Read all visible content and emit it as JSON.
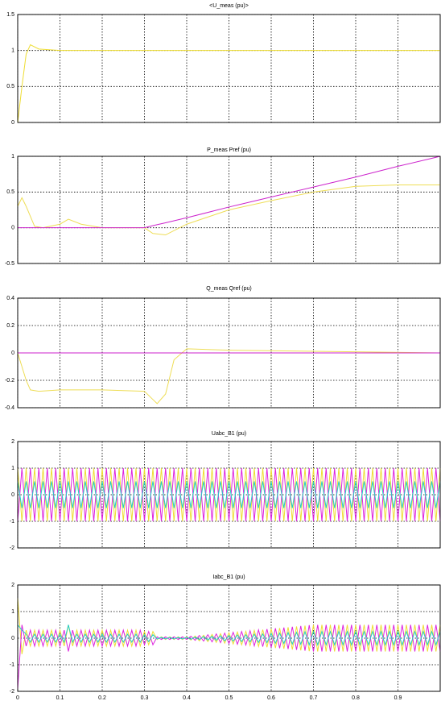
{
  "chart_data": [
    {
      "type": "line",
      "title": "<U_meas (pu)>",
      "x": [
        0,
        0.01,
        0.02,
        0.03,
        0.05,
        0.1,
        0.3,
        0.5,
        1
      ],
      "series": [
        {
          "color": "#eedd33",
          "values": [
            0,
            0.5,
            0.95,
            1.08,
            1.02,
            1.0,
            1.0,
            1.0,
            1.0
          ]
        }
      ],
      "xlim": [
        0,
        1
      ],
      "ylim": [
        0,
        1.5
      ],
      "yticks": [
        0,
        0.5,
        1,
        1.5
      ],
      "grid": true
    },
    {
      "type": "line",
      "title": "P_meas  Pref (pu)",
      "x": [
        0,
        0.01,
        0.02,
        0.04,
        0.06,
        0.1,
        0.12,
        0.15,
        0.2,
        0.3,
        0.32,
        0.35,
        0.4,
        0.5,
        0.6,
        0.7,
        0.8,
        0.9,
        1.0
      ],
      "series": [
        {
          "color": "#eedd55",
          "values": [
            0.3,
            0.42,
            0.3,
            0.02,
            0,
            0.05,
            0.12,
            0.05,
            0,
            0,
            -0.08,
            -0.1,
            0.05,
            0.25,
            0.38,
            0.5,
            0.58,
            0.6,
            0.6
          ]
        },
        {
          "color": "#cc22cc",
          "values": [
            0,
            0,
            0,
            0,
            0,
            0,
            0,
            0,
            0,
            0,
            0.03,
            0.07,
            0.14,
            0.29,
            0.43,
            0.57,
            0.71,
            0.86,
            1.0
          ]
        }
      ],
      "xlim": [
        0,
        1
      ],
      "ylim": [
        -0.5,
        1
      ],
      "yticks": [
        -0.5,
        0,
        0.5,
        1
      ],
      "grid": true
    },
    {
      "type": "line",
      "title": "Q_meas  Qref (pu)",
      "x": [
        0,
        0.01,
        0.02,
        0.03,
        0.05,
        0.1,
        0.2,
        0.3,
        0.32,
        0.33,
        0.35,
        0.37,
        0.4,
        0.5,
        1.0
      ],
      "series": [
        {
          "color": "#eedd55",
          "values": [
            0,
            -0.1,
            -0.2,
            -0.27,
            -0.28,
            -0.27,
            -0.27,
            -0.28,
            -0.34,
            -0.37,
            -0.3,
            -0.05,
            0.03,
            0.02,
            0
          ]
        },
        {
          "color": "#cc22cc",
          "values": [
            0,
            0,
            0,
            0,
            0,
            0,
            0,
            0,
            0,
            0,
            0,
            0,
            0,
            0,
            0
          ]
        }
      ],
      "xlim": [
        0,
        1
      ],
      "ylim": [
        -0.4,
        0.4
      ],
      "yticks": [
        -0.4,
        -0.2,
        0,
        0.2,
        0.4
      ],
      "grid": true
    },
    {
      "type": "line",
      "title": "Uabc_B1  (pu)",
      "x": [
        0,
        0.01,
        0.02,
        0.03,
        0.04,
        0.05,
        0.06,
        0.07,
        0.08,
        0.09,
        0.1,
        0.11,
        0.12,
        0.13,
        0.14,
        0.15,
        0.16,
        0.17,
        0.18,
        0.19,
        0.2,
        0.21,
        0.22,
        0.23,
        0.24,
        0.25,
        0.26,
        0.27,
        0.28,
        0.29,
        0.3,
        0.31,
        0.32,
        0.33,
        0.34,
        0.35,
        0.36,
        0.37,
        0.38,
        0.39,
        0.4,
        0.41,
        0.42,
        0.43,
        0.44,
        0.45,
        0.46,
        0.47,
        0.48,
        0.49,
        0.5,
        0.51,
        0.52,
        0.53,
        0.54,
        0.55,
        0.56,
        0.57,
        0.58,
        0.59,
        0.6,
        0.61,
        0.62,
        0.63,
        0.64,
        0.65,
        0.66,
        0.67,
        0.68,
        0.69,
        0.7,
        0.71,
        0.72,
        0.73,
        0.74,
        0.75,
        0.76,
        0.77,
        0.78,
        0.79,
        0.8,
        0.81,
        0.82,
        0.83,
        0.84,
        0.85,
        0.86,
        0.87,
        0.88,
        0.89,
        0.9,
        0.91,
        0.92,
        0.93,
        0.94,
        0.95,
        0.96,
        0.97,
        0.98,
        0.99,
        1
      ],
      "series": [
        {
          "color": "#eedd33",
          "values": [
            1,
            -1,
            1,
            -1,
            1,
            -1,
            1,
            -1,
            1,
            -1,
            1,
            -1,
            1,
            -1,
            1,
            -1,
            1,
            -1,
            1,
            -1,
            1,
            -1,
            1,
            -1,
            1,
            -1,
            1,
            -1,
            1,
            -1,
            1,
            -1,
            1,
            -1,
            1,
            -1,
            1,
            -1,
            1,
            -1,
            1,
            -1,
            1,
            -1,
            1,
            -1,
            1,
            -1,
            1,
            -1,
            1,
            -1,
            1,
            -1,
            1,
            -1,
            1,
            -1,
            1,
            -1,
            1,
            -1,
            1,
            -1,
            1,
            -1,
            1,
            -1,
            1,
            -1,
            1,
            -1,
            1,
            -1,
            1,
            -1,
            1,
            -1,
            1,
            -1,
            1,
            -1,
            1,
            -1,
            1,
            -1,
            1,
            -1,
            1,
            -1,
            1,
            -1,
            1,
            -1,
            1,
            -1,
            1,
            -1,
            1,
            -1,
            1
          ]
        },
        {
          "color": "#dd22dd",
          "values": [
            -1,
            1,
            -1,
            1,
            -1,
            1,
            -1,
            1,
            -1,
            1,
            -1,
            1,
            -1,
            1,
            -1,
            1,
            -1,
            1,
            -1,
            1,
            -1,
            1,
            -1,
            1,
            -1,
            1,
            -1,
            1,
            -1,
            1,
            -1,
            1,
            -1,
            1,
            -1,
            1,
            -1,
            1,
            -1,
            1,
            -1,
            1,
            -1,
            1,
            -1,
            1,
            -1,
            1,
            -1,
            1,
            -1,
            1,
            -1,
            1,
            -1,
            1,
            -1,
            1,
            -1,
            1,
            -1,
            1,
            -1,
            1,
            -1,
            1,
            -1,
            1,
            -1,
            1,
            -1,
            1,
            -1,
            1,
            -1,
            1,
            -1,
            1,
            -1,
            1,
            -1,
            1,
            -1,
            1,
            -1,
            1,
            -1,
            1,
            -1,
            1,
            -1,
            1,
            -1,
            1,
            -1,
            1,
            -1,
            1,
            -1,
            1,
            -1
          ]
        },
        {
          "color": "#22cccc",
          "values": [
            0.5,
            -0.5,
            0.5,
            -0.5,
            0.5,
            -0.5,
            0.5,
            -0.5,
            0.5,
            -0.5,
            0.5,
            -0.5,
            0.5,
            -0.5,
            0.5,
            -0.5,
            0.5,
            -0.5,
            0.5,
            -0.5,
            0.5,
            -0.5,
            0.5,
            -0.5,
            0.5,
            -0.5,
            0.5,
            -0.5,
            0.5,
            -0.5,
            0.5,
            -0.5,
            0.5,
            -0.5,
            0.5,
            -0.5,
            0.5,
            -0.5,
            0.5,
            -0.5,
            0.5,
            -0.5,
            0.5,
            -0.5,
            0.5,
            -0.5,
            0.5,
            -0.5,
            0.5,
            -0.5,
            0.5,
            -0.5,
            0.5,
            -0.5,
            0.5,
            -0.5,
            0.5,
            -0.5,
            0.5,
            -0.5,
            0.5,
            -0.5,
            0.5,
            -0.5,
            0.5,
            -0.5,
            0.5,
            -0.5,
            0.5,
            -0.5,
            0.5,
            -0.5,
            0.5,
            -0.5,
            0.5,
            -0.5,
            0.5,
            -0.5,
            0.5,
            -0.5,
            0.5,
            -0.5,
            0.5,
            -0.5,
            0.5,
            -0.5,
            0.5,
            -0.5,
            0.5,
            -0.5,
            0.5,
            -0.5,
            0.5,
            -0.5,
            0.5,
            -0.5,
            0.5,
            -0.5,
            0.5,
            -0.5,
            0.5
          ]
        }
      ],
      "xlim": [
        0,
        1
      ],
      "ylim": [
        -2,
        2
      ],
      "yticks": [
        -2,
        -1,
        0,
        1,
        2
      ],
      "grid": true
    },
    {
      "type": "line",
      "title": "Iabc_B1  (pu)",
      "x": [
        0,
        0.01,
        0.02,
        0.03,
        0.04,
        0.05,
        0.06,
        0.07,
        0.08,
        0.09,
        0.1,
        0.11,
        0.12,
        0.13,
        0.14,
        0.15,
        0.16,
        0.17,
        0.18,
        0.19,
        0.2,
        0.21,
        0.22,
        0.23,
        0.24,
        0.25,
        0.26,
        0.27,
        0.28,
        0.29,
        0.3,
        0.31,
        0.32,
        0.33,
        0.34,
        0.35,
        0.36,
        0.37,
        0.38,
        0.39,
        0.4,
        0.41,
        0.42,
        0.43,
        0.44,
        0.45,
        0.46,
        0.47,
        0.48,
        0.49,
        0.5,
        0.51,
        0.52,
        0.53,
        0.54,
        0.55,
        0.56,
        0.57,
        0.58,
        0.59,
        0.6,
        0.61,
        0.62,
        0.63,
        0.64,
        0.65,
        0.66,
        0.67,
        0.68,
        0.69,
        0.7,
        0.71,
        0.72,
        0.73,
        0.74,
        0.75,
        0.76,
        0.77,
        0.78,
        0.79,
        0.8,
        0.81,
        0.82,
        0.83,
        0.84,
        0.85,
        0.86,
        0.87,
        0.88,
        0.89,
        0.9,
        0.91,
        0.92,
        0.93,
        0.94,
        0.95,
        0.96,
        0.97,
        0.98,
        0.99,
        1
      ],
      "series": [
        {
          "color": "#eedd33",
          "values": [
            1.5,
            -0.6,
            0.3,
            -0.3,
            0.3,
            -0.3,
            0.3,
            -0.3,
            0.3,
            -0.3,
            0.3,
            -0.3,
            0.5,
            -0.3,
            0.3,
            -0.3,
            0.3,
            -0.3,
            0.3,
            -0.3,
            0.3,
            -0.3,
            0.3,
            -0.3,
            0.3,
            -0.3,
            0.3,
            -0.3,
            0.3,
            -0.3,
            0.25,
            -0.25,
            0.25,
            -0.05,
            0.05,
            -0.05,
            0.05,
            -0.05,
            0.05,
            -0.05,
            0.05,
            -0.07,
            0.08,
            -0.1,
            0.11,
            -0.13,
            0.14,
            -0.16,
            0.17,
            -0.19,
            0.2,
            -0.22,
            0.23,
            -0.25,
            0.26,
            -0.28,
            0.29,
            -0.31,
            0.32,
            -0.34,
            0.35,
            -0.37,
            0.38,
            -0.4,
            0.41,
            -0.43,
            0.44,
            -0.46,
            0.47,
            -0.49,
            0.5,
            -0.5,
            0.5,
            -0.5,
            0.5,
            -0.5,
            0.5,
            -0.5,
            0.5,
            -0.5,
            0.5,
            -0.5,
            0.5,
            -0.5,
            0.5,
            -0.5,
            0.5,
            -0.5,
            0.5,
            -0.5,
            0.5,
            -0.5,
            0.5,
            -0.5,
            0.5,
            -0.5,
            0.5,
            -0.5,
            0.5,
            -0.5,
            0.5
          ]
        },
        {
          "color": "#dd22dd",
          "values": [
            -1.9,
            0.5,
            -0.3,
            0.3,
            -0.3,
            0.3,
            -0.3,
            0.3,
            -0.3,
            0.3,
            -0.3,
            0.3,
            -0.5,
            0.3,
            -0.3,
            0.3,
            -0.3,
            0.3,
            -0.3,
            0.3,
            -0.3,
            0.3,
            -0.3,
            0.3,
            -0.3,
            0.3,
            -0.3,
            0.3,
            -0.3,
            0.3,
            -0.25,
            0.25,
            -0.25,
            0.05,
            -0.05,
            0.05,
            -0.05,
            0.05,
            -0.05,
            0.05,
            -0.05,
            0.07,
            -0.08,
            0.1,
            -0.11,
            0.13,
            -0.14,
            0.16,
            -0.17,
            0.19,
            -0.2,
            0.22,
            -0.23,
            0.25,
            -0.26,
            0.28,
            -0.29,
            0.31,
            -0.32,
            0.34,
            -0.35,
            0.37,
            -0.38,
            0.4,
            -0.41,
            0.43,
            -0.44,
            0.46,
            -0.47,
            0.49,
            -0.5,
            0.5,
            -0.5,
            0.5,
            -0.5,
            0.5,
            -0.5,
            0.5,
            -0.5,
            0.5,
            -0.5,
            0.5,
            -0.5,
            0.5,
            -0.5,
            0.5,
            -0.5,
            0.5,
            -0.5,
            0.5,
            -0.5,
            0.5,
            -0.5,
            0.5,
            -0.5,
            0.5,
            -0.5,
            0.5,
            -0.5,
            0.5,
            -0.5
          ]
        },
        {
          "color": "#22cccc",
          "values": [
            0.5,
            0.3,
            0.15,
            -0.15,
            0.15,
            -0.15,
            0.15,
            -0.15,
            0.15,
            -0.15,
            0.15,
            -0.15,
            0.5,
            -0.15,
            0.15,
            -0.15,
            0.15,
            -0.15,
            0.15,
            -0.15,
            0.15,
            -0.15,
            0.15,
            -0.15,
            0.15,
            -0.15,
            0.15,
            -0.15,
            0.15,
            -0.15,
            0.13,
            -0.13,
            0.13,
            -0.03,
            0.03,
            -0.03,
            0.03,
            -0.03,
            0.03,
            -0.03,
            0.03,
            -0.04,
            0.04,
            -0.05,
            0.06,
            -0.07,
            0.07,
            -0.08,
            0.09,
            -0.1,
            0.1,
            -0.11,
            0.12,
            -0.13,
            0.13,
            -0.14,
            0.15,
            -0.16,
            0.16,
            -0.17,
            0.18,
            -0.19,
            0.19,
            -0.2,
            0.21,
            -0.22,
            0.22,
            -0.23,
            0.24,
            -0.25,
            0.25,
            -0.25,
            0.25,
            -0.25,
            0.25,
            -0.25,
            0.25,
            -0.25,
            0.25,
            -0.25,
            0.25,
            -0.25,
            0.25,
            -0.25,
            0.25,
            -0.25,
            0.25,
            -0.25,
            0.25,
            -0.25,
            0.25,
            -0.25,
            0.25,
            -0.25,
            0.25,
            -0.25,
            0.25,
            -0.25,
            0.25,
            -0.25,
            0.25
          ]
        }
      ],
      "xlim": [
        0,
        1
      ],
      "xticks": [
        0,
        0.1,
        0.2,
        0.3,
        0.4,
        0.5,
        0.6,
        0.7,
        0.8,
        0.9
      ],
      "ylim": [
        -2,
        2
      ],
      "yticks": [
        -2,
        -1,
        0,
        1,
        2
      ],
      "grid": true
    }
  ]
}
